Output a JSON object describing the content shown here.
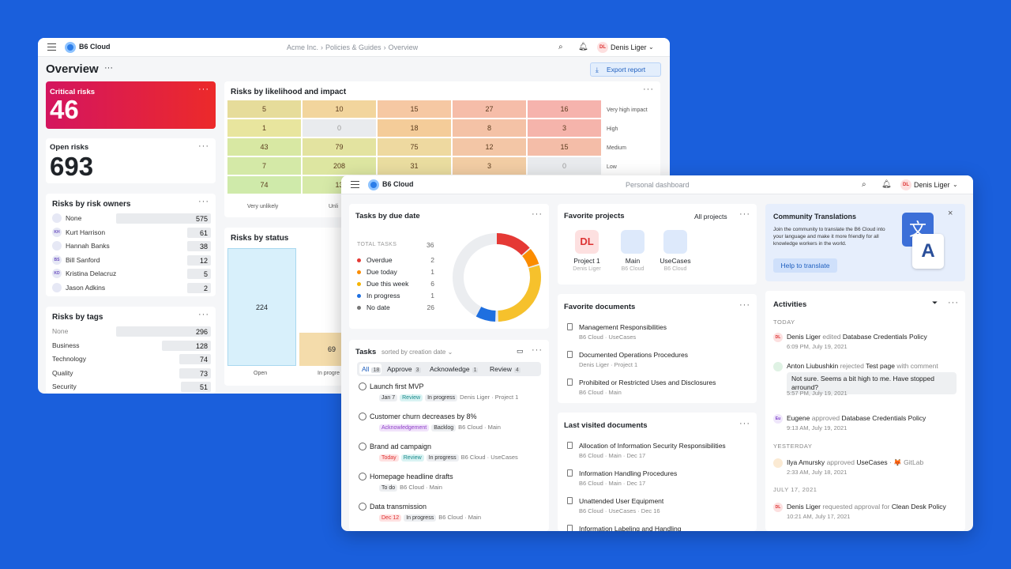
{
  "back": {
    "brand": "B6 Cloud",
    "breadcrumb": [
      "Acme Inc.",
      "Policies & Guides",
      "Overview"
    ],
    "user": {
      "initials": "DL",
      "name": "Denis Liger"
    },
    "title": "Overview",
    "export": "Export report",
    "critical": {
      "label": "Critical risks",
      "value": "46"
    },
    "open": {
      "label": "Open risks",
      "value": "693"
    },
    "owners": {
      "title": "Risks by risk owners",
      "items": [
        {
          "name": "None",
          "value": "575",
          "initials": ""
        },
        {
          "name": "Kurt Harrison",
          "value": "61",
          "initials": "KH"
        },
        {
          "name": "Hannah Banks",
          "value": "38",
          "initials": ""
        },
        {
          "name": "Bill Sanford",
          "value": "12",
          "initials": "BS"
        },
        {
          "name": "Kristina Delacruz",
          "value": "5",
          "initials": "KD"
        },
        {
          "name": "Jason Adkins",
          "value": "2",
          "initials": ""
        }
      ]
    },
    "tags": {
      "title": "Risks by tags",
      "items": [
        {
          "name": "None",
          "value": "296"
        },
        {
          "name": "Business",
          "value": "128"
        },
        {
          "name": "Technology",
          "value": "74"
        },
        {
          "name": "Quality",
          "value": "73"
        },
        {
          "name": "Security",
          "value": "51"
        }
      ]
    },
    "heatmap": {
      "title": "Risks by likelihood and impact",
      "rows": [
        [
          "5",
          "10",
          "15",
          "27",
          "16"
        ],
        [
          "1",
          "0",
          "18",
          "8",
          "3"
        ],
        [
          "43",
          "79",
          "75",
          "12",
          "15"
        ],
        [
          "7",
          "208",
          "31",
          "3",
          "0"
        ],
        [
          "74",
          "13",
          "",
          "",
          ""
        ]
      ],
      "row_labels": [
        "Very high impact",
        "High",
        "Medium",
        "Low",
        ""
      ],
      "col_labels": [
        "Very unlikely",
        "Unli"
      ]
    },
    "status": {
      "title": "Risks by status",
      "labels": [
        "Open",
        "In progre"
      ],
      "values": [
        "224",
        "69"
      ]
    }
  },
  "front": {
    "brand": "B6 Cloud",
    "page": "Personal dashboard",
    "user": {
      "initials": "DL",
      "name": "Denis Liger"
    },
    "due": {
      "title": "Tasks by due date",
      "total_label": "TOTAL TASKS",
      "total": "36",
      "items": [
        {
          "label": "Overdue",
          "value": "2",
          "color": "#e53935"
        },
        {
          "label": "Due today",
          "value": "1",
          "color": "#fb8c00"
        },
        {
          "label": "Due this week",
          "value": "6",
          "color": "#f6b400"
        },
        {
          "label": "In progress",
          "value": "1",
          "color": "#1e6fe0"
        },
        {
          "label": "No date",
          "value": "26",
          "color": "#777"
        }
      ]
    },
    "tasks": {
      "title": "Tasks",
      "sort": "sorted by creation date",
      "tabs": [
        {
          "label": "All",
          "count": "18"
        },
        {
          "label": "Approve",
          "count": "3"
        },
        {
          "label": "Acknowledge",
          "count": "1"
        },
        {
          "label": "Review",
          "count": "4"
        }
      ],
      "items": [
        {
          "title": "Launch first MVP",
          "tags": [
            "Jan 7",
            "Review",
            "In progress"
          ],
          "meta": "Denis Liger · Project 1"
        },
        {
          "title": "Customer churn decreases by 8%",
          "tags": [
            "Acknowledgement",
            "Backlog"
          ],
          "meta": "B6 Cloud · Main"
        },
        {
          "title": "Brand ad campaign",
          "tags": [
            "Today",
            "Review",
            "In progress"
          ],
          "meta": "B6 Cloud · UseCases"
        },
        {
          "title": "Homepage headline drafts",
          "tags": [
            "To do"
          ],
          "meta": "B6 Cloud · Main"
        },
        {
          "title": "Data transmission",
          "tags": [
            "Dec 12",
            "In progress"
          ],
          "meta": "B6 Cloud · Main"
        }
      ]
    },
    "projects": {
      "title": "Favorite projects",
      "all": "All projects",
      "items": [
        {
          "name": "Project 1",
          "owner": "Denis Liger",
          "initials": "DL"
        },
        {
          "name": "Main",
          "owner": "B6 Cloud",
          "initials": ""
        },
        {
          "name": "UseCases",
          "owner": "B6 Cloud",
          "initials": ""
        }
      ]
    },
    "favdocs": {
      "title": "Favorite documents",
      "items": [
        {
          "title": "Management Responsibilities",
          "sub": "B6 Cloud · UseCases"
        },
        {
          "title": "Documented Operations Procedures",
          "sub": "Denis Liger · Project 1"
        },
        {
          "title": "Prohibited or Restricted Uses and Disclosures",
          "sub": "B6 Cloud · Main"
        }
      ]
    },
    "lastdocs": {
      "title": "Last visited documents",
      "items": [
        {
          "title": "Allocation of Information Security Responsibilities",
          "sub": "B6 Cloud · Main · Dec 17"
        },
        {
          "title": "Information Handling Procedures",
          "sub": "B6 Cloud · Main · Dec 17"
        },
        {
          "title": "Unattended User Equipment",
          "sub": "B6 Cloud · UseCases · Dec 16"
        },
        {
          "title": "Information Labeling and Handling",
          "sub": ""
        }
      ]
    },
    "community": {
      "title": "Community Translations",
      "text": "Join the community to translate the B6 Cloud into your language and make it more friendly for all knowledge workers in the world.",
      "button": "Help to translate"
    },
    "activities": {
      "title": "Activities",
      "sections": [
        "TODAY",
        "YESTERDAY",
        "JULY 17, 2021"
      ],
      "items": [
        {
          "who": "Denis Liger",
          "verb": "edited",
          "obj": "Database Credentials Policy",
          "time": "6:09 PM, July 19, 2021",
          "initials": "DL"
        },
        {
          "who": "Anton Liubushkin",
          "verb": "rejected",
          "obj": "Test page",
          "extra": "with comment",
          "time": "5:57 PM, July 19, 2021",
          "comment": "Not sure. Seems a bit high to me. Have stopped arround?",
          "initials": ""
        },
        {
          "who": "Eugene",
          "verb": "approved",
          "obj": "Database Credentials Policy",
          "time": "9:13 AM, July 19, 2021",
          "initials": "Eu"
        },
        {
          "who": "Ilya Amursky",
          "verb": "approved",
          "obj": "UseCases",
          "extra": "· 🦊 GitLab",
          "time": "2:33 AM, July 18, 2021",
          "initials": ""
        },
        {
          "who": "Denis Liger",
          "verb": "requested approval for",
          "obj": "Clean Desk Policy",
          "time": "10:21 AM, July 17, 2021",
          "initials": "DL"
        }
      ]
    }
  }
}
